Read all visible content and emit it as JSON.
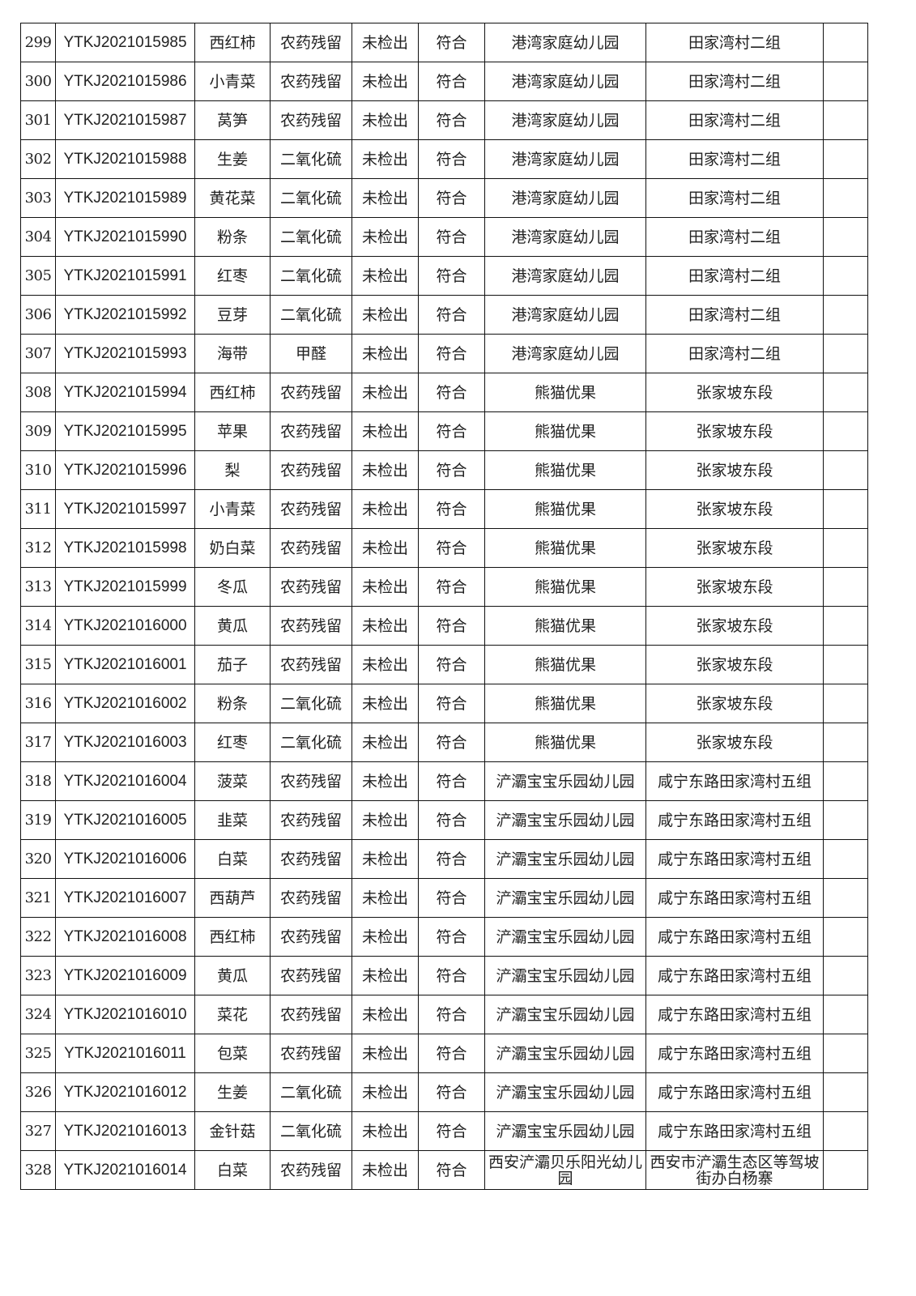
{
  "table": {
    "rows": [
      [
        "299",
        "YTKJ2021015985",
        "西红柿",
        "农药残留",
        "未检出",
        "符合",
        "港湾家庭幼儿园",
        "田家湾村二组",
        ""
      ],
      [
        "300",
        "YTKJ2021015986",
        "小青菜",
        "农药残留",
        "未检出",
        "符合",
        "港湾家庭幼儿园",
        "田家湾村二组",
        ""
      ],
      [
        "301",
        "YTKJ2021015987",
        "莴笋",
        "农药残留",
        "未检出",
        "符合",
        "港湾家庭幼儿园",
        "田家湾村二组",
        ""
      ],
      [
        "302",
        "YTKJ2021015988",
        "生姜",
        "二氧化硫",
        "未检出",
        "符合",
        "港湾家庭幼儿园",
        "田家湾村二组",
        ""
      ],
      [
        "303",
        "YTKJ2021015989",
        "黄花菜",
        "二氧化硫",
        "未检出",
        "符合",
        "港湾家庭幼儿园",
        "田家湾村二组",
        ""
      ],
      [
        "304",
        "YTKJ2021015990",
        "粉条",
        "二氧化硫",
        "未检出",
        "符合",
        "港湾家庭幼儿园",
        "田家湾村二组",
        ""
      ],
      [
        "305",
        "YTKJ2021015991",
        "红枣",
        "二氧化硫",
        "未检出",
        "符合",
        "港湾家庭幼儿园",
        "田家湾村二组",
        ""
      ],
      [
        "306",
        "YTKJ2021015992",
        "豆芽",
        "二氧化硫",
        "未检出",
        "符合",
        "港湾家庭幼儿园",
        "田家湾村二组",
        ""
      ],
      [
        "307",
        "YTKJ2021015993",
        "海带",
        "甲醛",
        "未检出",
        "符合",
        "港湾家庭幼儿园",
        "田家湾村二组",
        ""
      ],
      [
        "308",
        "YTKJ2021015994",
        "西红柿",
        "农药残留",
        "未检出",
        "符合",
        "熊猫优果",
        "张家坡东段",
        ""
      ],
      [
        "309",
        "YTKJ2021015995",
        "苹果",
        "农药残留",
        "未检出",
        "符合",
        "熊猫优果",
        "张家坡东段",
        ""
      ],
      [
        "310",
        "YTKJ2021015996",
        "梨",
        "农药残留",
        "未检出",
        "符合",
        "熊猫优果",
        "张家坡东段",
        ""
      ],
      [
        "311",
        "YTKJ2021015997",
        "小青菜",
        "农药残留",
        "未检出",
        "符合",
        "熊猫优果",
        "张家坡东段",
        ""
      ],
      [
        "312",
        "YTKJ2021015998",
        "奶白菜",
        "农药残留",
        "未检出",
        "符合",
        "熊猫优果",
        "张家坡东段",
        ""
      ],
      [
        "313",
        "YTKJ2021015999",
        "冬瓜",
        "农药残留",
        "未检出",
        "符合",
        "熊猫优果",
        "张家坡东段",
        ""
      ],
      [
        "314",
        "YTKJ2021016000",
        "黄瓜",
        "农药残留",
        "未检出",
        "符合",
        "熊猫优果",
        "张家坡东段",
        ""
      ],
      [
        "315",
        "YTKJ2021016001",
        "茄子",
        "农药残留",
        "未检出",
        "符合",
        "熊猫优果",
        "张家坡东段",
        ""
      ],
      [
        "316",
        "YTKJ2021016002",
        "粉条",
        "二氧化硫",
        "未检出",
        "符合",
        "熊猫优果",
        "张家坡东段",
        ""
      ],
      [
        "317",
        "YTKJ2021016003",
        "红枣",
        "二氧化硫",
        "未检出",
        "符合",
        "熊猫优果",
        "张家坡东段",
        ""
      ],
      [
        "318",
        "YTKJ2021016004",
        "菠菜",
        "农药残留",
        "未检出",
        "符合",
        "浐灞宝宝乐园幼儿园",
        "咸宁东路田家湾村五组",
        ""
      ],
      [
        "319",
        "YTKJ2021016005",
        "韭菜",
        "农药残留",
        "未检出",
        "符合",
        "浐灞宝宝乐园幼儿园",
        "咸宁东路田家湾村五组",
        ""
      ],
      [
        "320",
        "YTKJ2021016006",
        "白菜",
        "农药残留",
        "未检出",
        "符合",
        "浐灞宝宝乐园幼儿园",
        "咸宁东路田家湾村五组",
        ""
      ],
      [
        "321",
        "YTKJ2021016007",
        "西葫芦",
        "农药残留",
        "未检出",
        "符合",
        "浐灞宝宝乐园幼儿园",
        "咸宁东路田家湾村五组",
        ""
      ],
      [
        "322",
        "YTKJ2021016008",
        "西红柿",
        "农药残留",
        "未检出",
        "符合",
        "浐灞宝宝乐园幼儿园",
        "咸宁东路田家湾村五组",
        ""
      ],
      [
        "323",
        "YTKJ2021016009",
        "黄瓜",
        "农药残留",
        "未检出",
        "符合",
        "浐灞宝宝乐园幼儿园",
        "咸宁东路田家湾村五组",
        ""
      ],
      [
        "324",
        "YTKJ2021016010",
        "菜花",
        "农药残留",
        "未检出",
        "符合",
        "浐灞宝宝乐园幼儿园",
        "咸宁东路田家湾村五组",
        ""
      ],
      [
        "325",
        "YTKJ2021016011",
        "包菜",
        "农药残留",
        "未检出",
        "符合",
        "浐灞宝宝乐园幼儿园",
        "咸宁东路田家湾村五组",
        ""
      ],
      [
        "326",
        "YTKJ2021016012",
        "生姜",
        "二氧化硫",
        "未检出",
        "符合",
        "浐灞宝宝乐园幼儿园",
        "咸宁东路田家湾村五组",
        ""
      ],
      [
        "327",
        "YTKJ2021016013",
        "金针菇",
        "二氧化硫",
        "未检出",
        "符合",
        "浐灞宝宝乐园幼儿园",
        "咸宁东路田家湾村五组",
        ""
      ],
      [
        "328",
        "YTKJ2021016014",
        "白菜",
        "农药残留",
        "未检出",
        "符合",
        "西安浐灞贝乐阳光幼儿园",
        "西安市浐灞生态区等驾坡街办白杨寨",
        ""
      ]
    ]
  }
}
